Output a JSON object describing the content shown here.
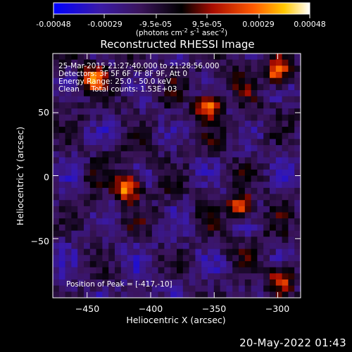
{
  "footer_date": "20-May-2022 01:43",
  "colorbar": {
    "ticks": [
      "-0.00048",
      "-0.00029",
      "-9.5e-05",
      "9.5e-05",
      "0.00029",
      "0.00048"
    ],
    "tick_values": [
      -0.00048,
      -0.00029,
      -9.5e-05,
      9.5e-05,
      0.00029,
      0.00048
    ],
    "range": [
      -0.00048,
      0.00048
    ],
    "units_label": "(photons cm-2 s-1 asec-2)",
    "colors": [
      "#0000ff",
      "#5a2a9a",
      "#000000",
      "#b01000",
      "#ff6a00",
      "#ffd200",
      "#ffffff"
    ]
  },
  "chart_data": {
    "type": "heatmap",
    "title": "Reconstructed RHESSI Image",
    "xlabel": "Heliocentric X (arcsec)",
    "ylabel": "Heliocentric Y (arcsec)",
    "xlim": [
      -477,
      -282
    ],
    "ylim": [
      -97,
      97
    ],
    "xticks": [
      -450,
      -400,
      -350,
      -300
    ],
    "yticks": [
      50,
      0,
      -50
    ],
    "xtick_labels": [
      "−450",
      "−400",
      "−350",
      "−300"
    ],
    "ytick_labels": [
      "50",
      "0",
      "−50"
    ],
    "peak_position": [
      -417,
      -10
    ],
    "bright_sources": [
      {
        "x": -418,
        "y": -10,
        "intensity": 0.00048
      },
      {
        "x": -445,
        "y": 78,
        "intensity": 0.0004
      },
      {
        "x": -355,
        "y": 55,
        "intensity": 0.00042
      },
      {
        "x": -300,
        "y": 82,
        "intensity": 0.00044
      },
      {
        "x": -330,
        "y": -25,
        "intensity": 0.0004
      },
      {
        "x": -298,
        "y": -82,
        "intensity": 0.00038
      }
    ],
    "annotations": [
      "25-Mar-2015 21:27:40.000 to 21:28:56.000",
      "Detectors: 3F 5F 6F 7F 8F 9F, Att 0",
      "Energy Range: 25.0 - 50.0 keV",
      "Clean     Total counts: 1.53E+03"
    ],
    "peak_label": "Position of Peak = [-417,-10]"
  }
}
